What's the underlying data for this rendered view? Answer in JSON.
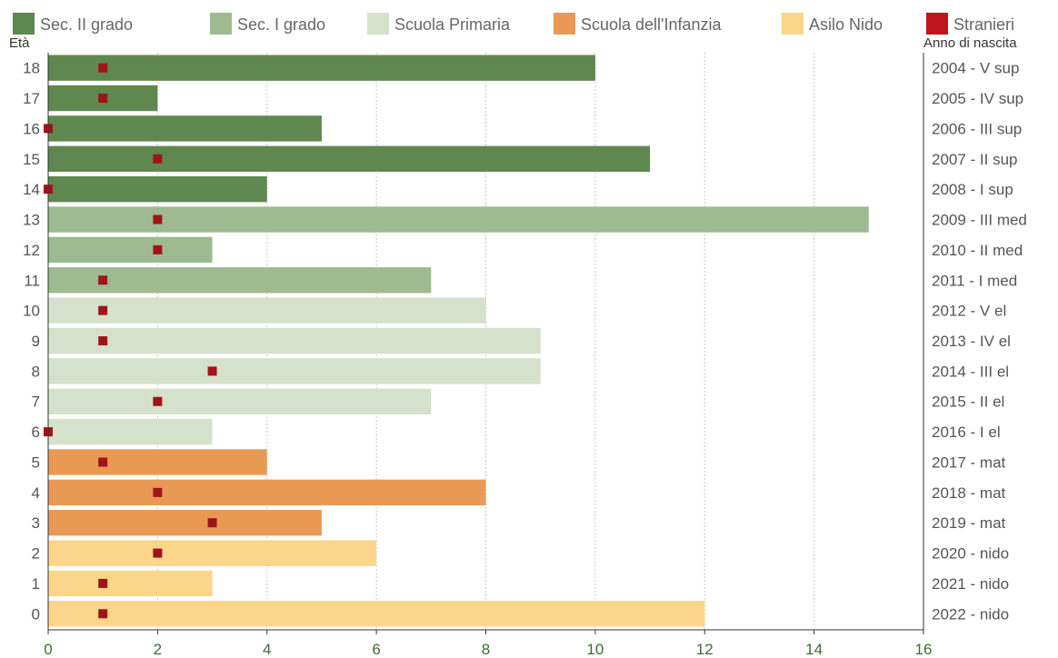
{
  "chart_data": {
    "type": "bar",
    "orientation": "horizontal",
    "y_left_title": "Età",
    "y_right_title": "Anno di nascita",
    "xlim": [
      0,
      16
    ],
    "x_ticks": [
      "0",
      "2",
      "4",
      "6",
      "8",
      "10",
      "12",
      "14",
      "16"
    ],
    "grid": "vertical dotted",
    "legend": [
      {
        "name": "Sec. II grado",
        "color": "#5f8750"
      },
      {
        "name": "Sec. I grado",
        "color": "#9dba90"
      },
      {
        "name": "Scuola Primaria",
        "color": "#d6e1cc"
      },
      {
        "name": "Scuola dell'Infanzia",
        "color": "#e89a55"
      },
      {
        "name": "Asilo Nido",
        "color": "#fbd58a"
      },
      {
        "name": "Stranieri",
        "color": "#c0151c"
      }
    ],
    "legend_position": "top",
    "rows": [
      {
        "age": "18",
        "year": "2004 - V sup",
        "value": 10,
        "stranieri": 1,
        "group": 0
      },
      {
        "age": "17",
        "year": "2005 - IV sup",
        "value": 2,
        "stranieri": 1,
        "group": 0
      },
      {
        "age": "16",
        "year": "2006 - III sup",
        "value": 5,
        "stranieri": 0,
        "group": 0
      },
      {
        "age": "15",
        "year": "2007 - II sup",
        "value": 11,
        "stranieri": 2,
        "group": 0
      },
      {
        "age": "14",
        "year": "2008 - I sup",
        "value": 4,
        "stranieri": 0,
        "group": 0
      },
      {
        "age": "13",
        "year": "2009 - III med",
        "value": 15,
        "stranieri": 2,
        "group": 1
      },
      {
        "age": "12",
        "year": "2010 - II med",
        "value": 3,
        "stranieri": 2,
        "group": 1
      },
      {
        "age": "11",
        "year": "2011 - I med",
        "value": 7,
        "stranieri": 1,
        "group": 1
      },
      {
        "age": "10",
        "year": "2012 - V el",
        "value": 8,
        "stranieri": 1,
        "group": 2
      },
      {
        "age": "9",
        "year": "2013 - IV el",
        "value": 9,
        "stranieri": 1,
        "group": 2
      },
      {
        "age": "8",
        "year": "2014 - III el",
        "value": 9,
        "stranieri": 3,
        "group": 2
      },
      {
        "age": "7",
        "year": "2015 - II el",
        "value": 7,
        "stranieri": 2,
        "group": 2
      },
      {
        "age": "6",
        "year": "2016 - I el",
        "value": 3,
        "stranieri": 0,
        "group": 2
      },
      {
        "age": "5",
        "year": "2017 - mat",
        "value": 4,
        "stranieri": 1,
        "group": 3
      },
      {
        "age": "4",
        "year": "2018 - mat",
        "value": 8,
        "stranieri": 2,
        "group": 3
      },
      {
        "age": "3",
        "year": "2019 - mat",
        "value": 5,
        "stranieri": 3,
        "group": 3
      },
      {
        "age": "2",
        "year": "2020 - nido",
        "value": 6,
        "stranieri": 2,
        "group": 4
      },
      {
        "age": "1",
        "year": "2021 - nido",
        "value": 3,
        "stranieri": 1,
        "group": 4
      },
      {
        "age": "0",
        "year": "2022 - nido",
        "value": 12,
        "stranieri": 1,
        "group": 4
      }
    ]
  }
}
